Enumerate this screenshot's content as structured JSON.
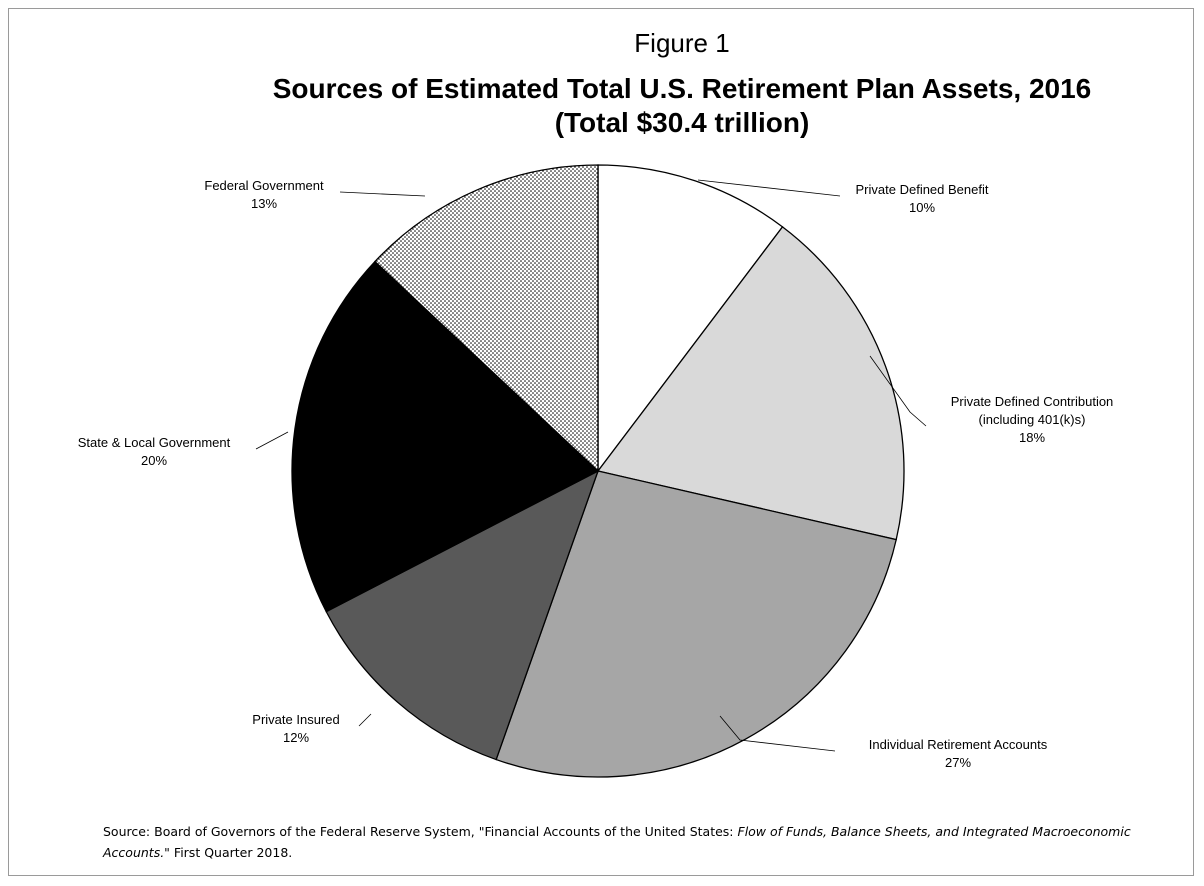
{
  "figure_label": "Figure 1",
  "title_line1": "Sources of Estimated Total U.S. Retirement Plan Assets, 2016",
  "title_line2": "(Total $30.4 trillion)",
  "chart_data": {
    "type": "pie",
    "title": "Sources of Estimated Total U.S. Retirement Plan Assets, 2016",
    "subtitle": "(Total $30.4 trillion)",
    "start": "12 o'clock",
    "direction": "clockwise",
    "slices": [
      {
        "label": "Private Defined Benefit",
        "label_lines": [
          "Private Defined Benefit"
        ],
        "percent_label": "10%",
        "value": 10.3,
        "fill": "#ffffff",
        "pattern": "none"
      },
      {
        "label": "Private Defined Contribution (including 401(k)s)",
        "label_lines": [
          "Private Defined Contribution",
          "(including 401(k)s)"
        ],
        "percent_label": "18%",
        "value": 18.3,
        "fill": "#d9d9d9",
        "pattern": "none"
      },
      {
        "label": "Individual Retirement Accounts",
        "label_lines": [
          "Individual Retirement Accounts"
        ],
        "percent_label": "27%",
        "value": 26.8,
        "fill": "#a6a6a6",
        "pattern": "none"
      },
      {
        "label": "Private Insured",
        "label_lines": [
          "Private Insured"
        ],
        "percent_label": "12%",
        "value": 12.0,
        "fill": "#595959",
        "pattern": "none"
      },
      {
        "label": "State & Local Government",
        "label_lines": [
          "State & Local Government"
        ],
        "percent_label": "20%",
        "value": 19.6,
        "fill": "#000000",
        "pattern": "none"
      },
      {
        "label": "Federal Government",
        "label_lines": [
          "Federal Government"
        ],
        "percent_label": "13%",
        "value": 13.0,
        "fill": "#ffffff",
        "pattern": "dots"
      }
    ]
  },
  "source": {
    "prefix": "Source: Board of Governors of the Federal Reserve System, \"Financial Accounts of the United States: ",
    "italic": "Flow of Funds, Balance Sheets, and Integrated Macroeconomic Accounts.\"",
    "suffix": " First Quarter 2018."
  }
}
